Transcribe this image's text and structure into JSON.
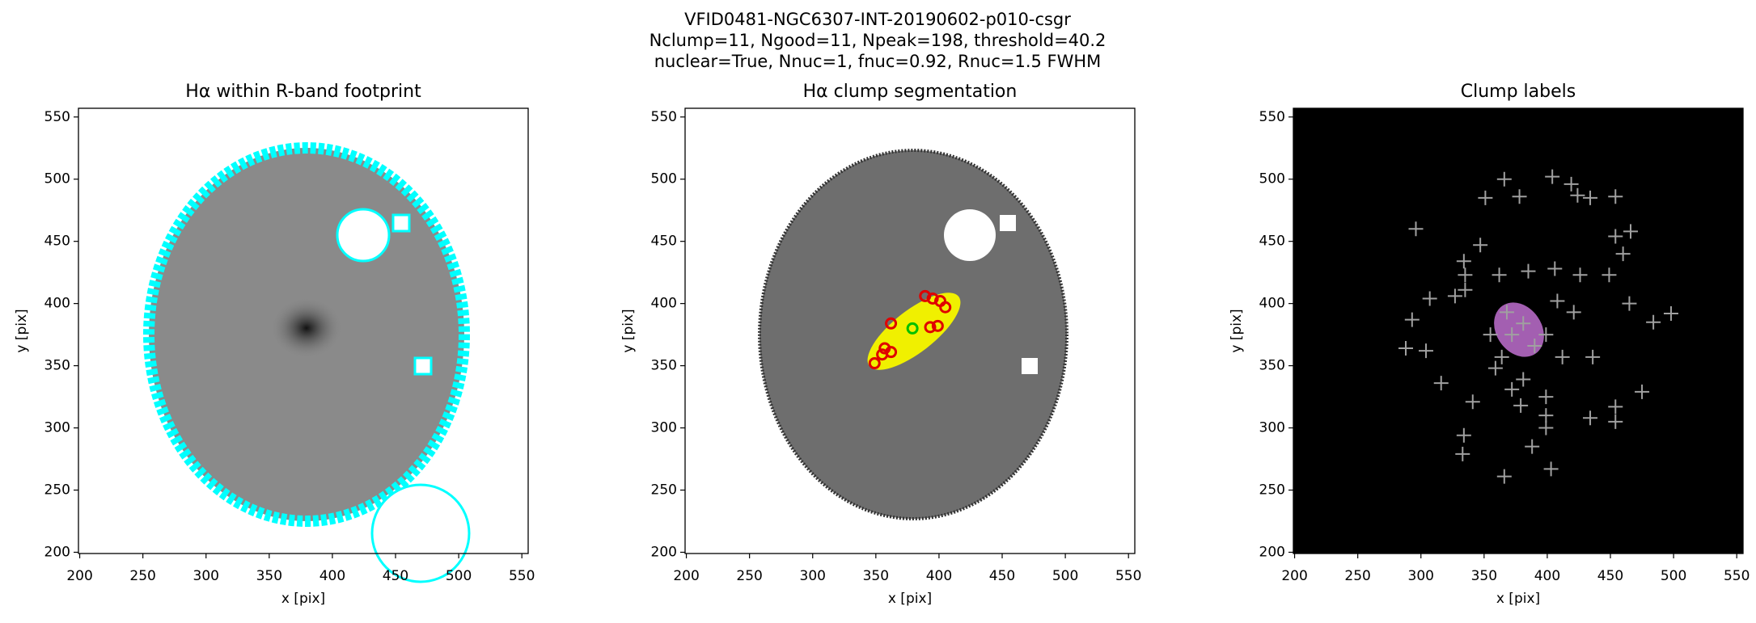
{
  "title": [
    "VFID0481-NGC6307-INT-20190602-p010-csgr",
    "Nclump=11, Ngood=11, Npeak=198, threshold=40.2",
    "nuclear=True, Nnuc=1, fnuc=0.92, Rnuc=1.5 FWHM"
  ],
  "chart_data": [
    {
      "type": "image",
      "title": "Hα within R-band footprint",
      "xlabel": "x [pix]",
      "ylabel": "y [pix]",
      "xlim": [
        199,
        555
      ],
      "ylim": [
        199,
        557
      ],
      "xticks": [
        200,
        250,
        300,
        350,
        400,
        450,
        500,
        550
      ],
      "yticks": [
        200,
        250,
        300,
        350,
        400,
        450,
        500,
        550
      ]
    },
    {
      "type": "scatter",
      "title": "Hα clump segmentation",
      "xlabel": "x [pix]",
      "ylabel": "y [pix]",
      "xlim": [
        199,
        555
      ],
      "ylim": [
        199,
        557
      ],
      "xticks": [
        200,
        250,
        300,
        350,
        400,
        450,
        500,
        550
      ],
      "yticks": [
        200,
        250,
        300,
        350,
        400,
        450,
        500,
        550
      ],
      "series": [
        {
          "color": "#e00000",
          "x": [
            349,
            355,
            362,
            357,
            362,
            389,
            395,
            401,
            405,
            399,
            393
          ],
          "values": [
            352,
            359,
            361,
            364,
            384,
            406,
            404,
            402,
            397,
            382,
            381
          ]
        },
        {
          "color": "#00c000",
          "x": [
            379
          ],
          "values": [
            380
          ]
        }
      ]
    },
    {
      "type": "scatter",
      "title": "Clump labels",
      "xlabel": "x [pix]",
      "ylabel": "y [pix]",
      "xlim": [
        199,
        555
      ],
      "ylim": [
        199,
        557
      ],
      "xticks": [
        200,
        250,
        300,
        350,
        400,
        450,
        500,
        550
      ],
      "yticks": [
        200,
        250,
        300,
        350,
        400,
        450,
        500,
        550
      ],
      "series": [
        {
          "color": "#a0a0a0",
          "x": [
            296,
            366,
            404,
            419,
            424,
            378,
            351,
            454,
            434,
            466,
            454,
            460,
            449,
            426,
            406,
            347,
            334,
            335,
            385,
            362,
            335,
            327,
            307,
            293,
            288,
            304,
            316,
            341,
            372,
            399,
            399,
            399,
            379,
            434,
            454,
            454,
            475,
            436,
            484,
            498,
            465,
            334,
            333,
            388,
            366,
            403,
            364,
            372,
            381,
            359,
            381,
            399,
            408,
            421,
            412,
            390,
            368,
            355
          ],
          "values": [
            460,
            500,
            502,
            496,
            487,
            486,
            485,
            486,
            485,
            458,
            454,
            440,
            423,
            423,
            428,
            447,
            434,
            423,
            426,
            423,
            411,
            406,
            404,
            387,
            364,
            362,
            336,
            321,
            331,
            325,
            310,
            300,
            318,
            308,
            317,
            305,
            329,
            357,
            385,
            392,
            400,
            294,
            279,
            285,
            261,
            267,
            357,
            375,
            384,
            348,
            339,
            375,
            402,
            393,
            357,
            366,
            393,
            375
          ]
        }
      ]
    }
  ]
}
